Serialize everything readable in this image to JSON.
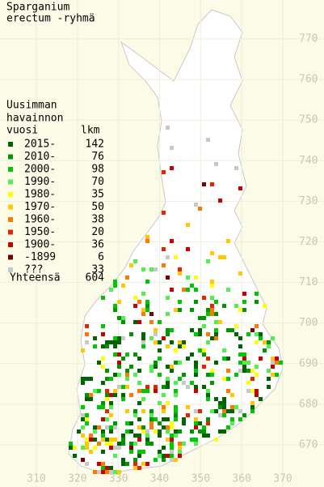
{
  "title": [
    "Sparganium",
    "erectum -ryhmä"
  ],
  "legend": {
    "header": [
      "Uusimman",
      "havainnon",
      "vuosi"
    ],
    "count_header": "lkm",
    "items": [
      {
        "label": "2015-",
        "count": 142,
        "color": "#006400"
      },
      {
        "label": "2010-",
        "count": 76,
        "color": "#009600"
      },
      {
        "label": "2000-",
        "count": 98,
        "color": "#00c800"
      },
      {
        "label": "1990-",
        "count": 70,
        "color": "#50f050"
      },
      {
        "label": "1980-",
        "count": 35,
        "color": "#ffff00"
      },
      {
        "label": "1970-",
        "count": 50,
        "color": "#ffc800"
      },
      {
        "label": "1960-",
        "count": 38,
        "color": "#ff7800"
      },
      {
        "label": "1950-",
        "count": 20,
        "color": "#e02800"
      },
      {
        "label": "1900-",
        "count": 36,
        "color": "#c80000"
      },
      {
        "label": "-1899",
        "count": 6,
        "color": "#780000"
      },
      {
        "label": "???",
        "count": 33,
        "color": "#c8c8c8"
      }
    ],
    "total": {
      "label": "Yhteensä",
      "value": 604
    }
  },
  "grid": {
    "yticks": [
      770,
      760,
      750,
      740,
      730,
      720,
      710,
      700,
      690,
      680,
      670
    ],
    "xticks": [
      310,
      320,
      330,
      340,
      350,
      360,
      370
    ]
  }
}
